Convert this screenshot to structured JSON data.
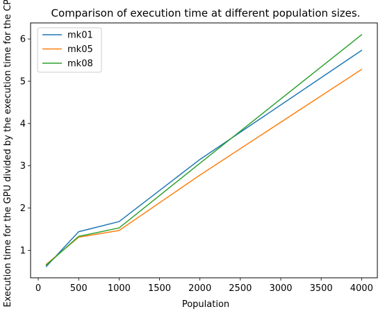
{
  "chart_data": {
    "type": "line",
    "title": "Comparison of execution time at different population sizes.",
    "xlabel": "Population",
    "ylabel": "Execution time for the GPU divided by the execution time for the CPU",
    "x": [
      100,
      500,
      1000,
      2000,
      4000
    ],
    "series": [
      {
        "name": "mk01",
        "color": "#1f77b4",
        "values": [
          0.62,
          1.44,
          1.68,
          3.15,
          5.73
        ]
      },
      {
        "name": "mk05",
        "color": "#ff7f0e",
        "values": [
          0.67,
          1.31,
          1.47,
          2.78,
          5.28
        ]
      },
      {
        "name": "mk08",
        "color": "#2ca02c",
        "values": [
          0.65,
          1.33,
          1.53,
          3.06,
          6.1
        ]
      }
    ],
    "xlim": [
      -95,
      4195
    ],
    "ylim": [
      0.35,
      6.38
    ],
    "xticks": [
      0,
      500,
      1000,
      1500,
      2000,
      2500,
      3000,
      3500,
      4000
    ],
    "yticks": [
      1,
      2,
      3,
      4,
      5,
      6
    ],
    "grid": false,
    "legend_position": "top-left"
  }
}
